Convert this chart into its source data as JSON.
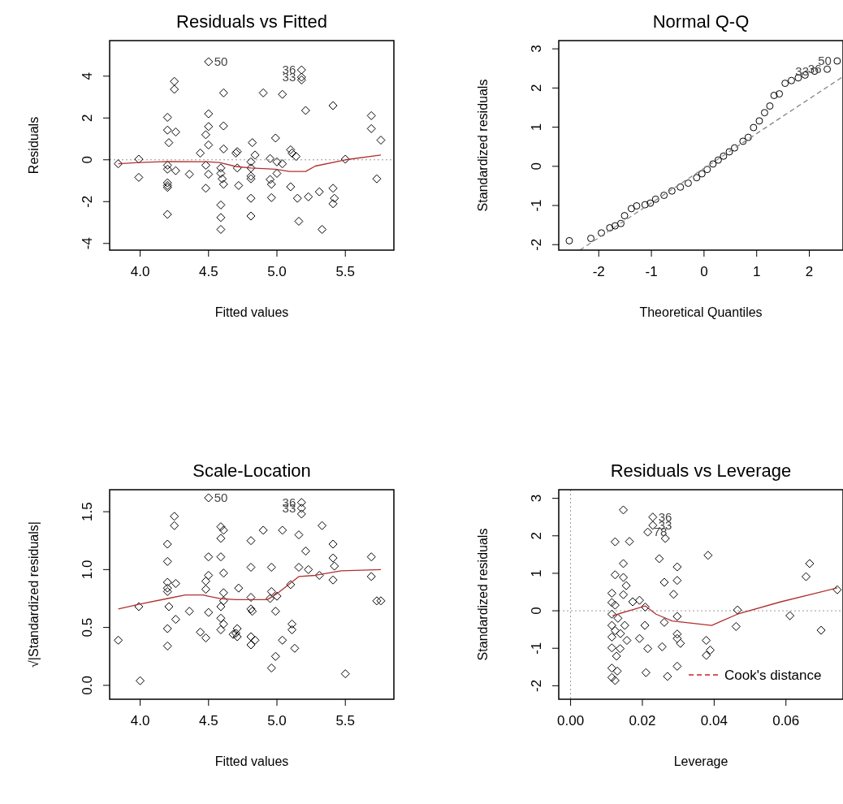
{
  "chart_data": [
    {
      "type": "scatter",
      "title": "Residuals vs Fitted",
      "xlabel": "Fitted values",
      "ylabel": "Residuals",
      "xlim": [
        3.777,
        5.855
      ],
      "ylim": [
        -4.32,
        5.7
      ],
      "xticks": [
        {
          "value": 4,
          "label": "4.0"
        },
        {
          "value": 4.5,
          "label": "4.5"
        },
        {
          "value": 5,
          "label": "5.0"
        },
        {
          "value": 5.5,
          "label": "5.5"
        }
      ],
      "yticks": [
        -4,
        -2,
        0,
        2,
        4
      ],
      "series": [
        {
          "color": "#000000",
          "marker": "diamond",
          "x": [
            3.84,
            3.99,
            3.99,
            4.2,
            4.2,
            4.21,
            4.2,
            4.2,
            4.2,
            4.2,
            4.2,
            4.2,
            4.25,
            4.25,
            4.26,
            4.26,
            4.36,
            4.44,
            4.48,
            4.48,
            4.48,
            4.5,
            4.5,
            4.5,
            4.5,
            4.5,
            4.59,
            4.59,
            4.6,
            4.61,
            4.59,
            4.59,
            4.59,
            4.61,
            4.61,
            4.61,
            4.7,
            4.71,
            4.71,
            4.72,
            4.81,
            4.81,
            4.81,
            4.81,
            4.81,
            4.81,
            4.82,
            4.84,
            4.9,
            4.95,
            4.95,
            4.96,
            4.96,
            4.99,
            5.0,
            5.0,
            5.04,
            5.04,
            5.1,
            5.11,
            5.14,
            5.1,
            5.15,
            5.16,
            5.18,
            5.18,
            5.18,
            5.21,
            5.23,
            5.31,
            5.33,
            5.41,
            5.41,
            5.42,
            5.41,
            5.5,
            5.69,
            5.69,
            5.73,
            5.76
          ],
          "values": [
            -0.19,
            0.03,
            -0.84,
            2.03,
            1.42,
            0.82,
            -0.26,
            -0.45,
            -1.1,
            -1.23,
            -1.32,
            -2.61,
            3.75,
            3.37,
            1.33,
            -0.52,
            -0.69,
            0.32,
            1.2,
            -0.26,
            -1.36,
            4.69,
            2.2,
            1.59,
            0.71,
            -0.69,
            -0.39,
            -0.65,
            -0.91,
            -1.17,
            -2.16,
            -2.76,
            -3.33,
            3.2,
            1.62,
            0.52,
            0.32,
            0.39,
            -0.39,
            -1.23,
            -0.1,
            -0.39,
            -0.78,
            -0.91,
            -1.84,
            -2.69,
            0.82,
            0.23,
            3.2,
            0.06,
            -0.94,
            -1.17,
            -1.81,
            1.04,
            -0.1,
            -0.65,
            -0.19,
            3.13,
            0.48,
            0.32,
            0.16,
            -1.29,
            -1.84,
            -2.94,
            4.3,
            3.95,
            3.82,
            2.36,
            -1.77,
            -1.53,
            -3.33,
            -1.36,
            -2.1,
            -1.84,
            2.59,
            0.03,
            2.11,
            1.49,
            -0.91,
            0.94
          ]
        },
        {
          "type": "line",
          "color": "#b03030",
          "x": [
            3.84,
            3.99,
            4.2,
            4.48,
            4.58,
            4.7,
            4.81,
            4.99,
            5.09,
            5.21,
            5.28,
            5.5,
            5.76
          ],
          "values": [
            -0.19,
            -0.13,
            -0.08,
            -0.09,
            -0.13,
            -0.32,
            -0.39,
            -0.45,
            -0.56,
            -0.56,
            -0.3,
            0.0,
            0.23
          ]
        }
      ],
      "ref_lines": [
        {
          "axis": "y",
          "value": 0,
          "color": "#999999",
          "line_style": "dotted"
        }
      ],
      "annotations": [
        {
          "text": "50",
          "x": 4.5,
          "y": 4.69
        },
        {
          "text": "36",
          "x": 5.18,
          "y": 4.3
        },
        {
          "text": "33",
          "x": 5.18,
          "y": 3.95
        }
      ]
    },
    {
      "type": "scatter",
      "title": "Normal Q-Q",
      "xlabel": "Theoretical Quantiles",
      "ylabel": "Standardized residuals",
      "xlim": [
        -2.76,
        2.64
      ],
      "ylim": [
        -2.14,
        3.21
      ],
      "xticks": [
        -2,
        -1,
        0,
        1,
        2
      ],
      "yticks": [
        -2,
        -1,
        0,
        1,
        2,
        3
      ],
      "series": [
        {
          "color": "#000000",
          "marker": "circle",
          "x": [
            -2.56,
            -2.15,
            -1.95,
            -1.79,
            -1.69,
            -1.58,
            -1.51,
            -1.38,
            -1.28,
            -1.12,
            -1.02,
            -0.92,
            -0.76,
            -0.61,
            -0.45,
            -0.3,
            -0.14,
            -0.04,
            0.06,
            0.17,
            0.27,
            0.37,
            0.48,
            0.58,
            0.74,
            0.84,
            0.94,
            1.05,
            1.15,
            1.25,
            1.33,
            1.43,
            1.54,
            1.66,
            1.79,
            1.92,
            2.1,
            2.34,
            2.53
          ],
          "values": [
            -1.9,
            -1.84,
            -1.7,
            -1.57,
            -1.52,
            -1.46,
            -1.26,
            -1.08,
            -1.01,
            -0.98,
            -0.94,
            -0.84,
            -0.74,
            -0.63,
            -0.53,
            -0.43,
            -0.29,
            -0.19,
            -0.08,
            0.06,
            0.16,
            0.26,
            0.37,
            0.47,
            0.64,
            0.74,
            0.99,
            1.16,
            1.37,
            1.54,
            1.81,
            1.85,
            2.12,
            2.19,
            2.26,
            2.33,
            2.43,
            2.48,
            2.69
          ]
        },
        {
          "type": "line",
          "color": "#888888",
          "line_style": "dashed",
          "x": [
            -2.36,
            2.64
          ],
          "values": [
            -2.14,
            2.29
          ]
        }
      ],
      "annotations": [
        {
          "text": "50",
          "x": 2.53,
          "y": 2.69
        },
        {
          "text": "36",
          "x": 2.34,
          "y": 2.48
        },
        {
          "text": "33",
          "x": 2.1,
          "y": 2.43
        }
      ]
    },
    {
      "type": "scatter",
      "title": "Scale-Location",
      "xlabel": "Fitted values",
      "ylabel": "√|Standardized residuals|",
      "xlim": [
        3.777,
        5.855
      ],
      "ylim": [
        -0.12,
        1.69
      ],
      "xticks": [
        {
          "value": 4,
          "label": "4.0"
        },
        {
          "value": 4.5,
          "label": "4.5"
        },
        {
          "value": 5,
          "label": "5.0"
        },
        {
          "value": 5.5,
          "label": "5.5"
        }
      ],
      "yticks": [
        {
          "value": 0,
          "label": "0.0"
        },
        {
          "value": 0.5,
          "label": "0.5"
        },
        {
          "value": 1,
          "label": "1.0"
        },
        {
          "value": 1.5,
          "label": "1.5"
        }
      ],
      "series": [
        {
          "color": "#000000",
          "marker": "diamond",
          "x": [
            3.84,
            3.99,
            4.2,
            4.2,
            4.2,
            4.2,
            4.2,
            4.21,
            4.2,
            4.2,
            4.25,
            4.25,
            4.26,
            4.26,
            4.36,
            4.44,
            4.48,
            4.48,
            4.48,
            4.5,
            4.5,
            4.5,
            4.5,
            4.59,
            4.59,
            4.59,
            4.61,
            4.61,
            4.61,
            4.59,
            4.59,
            4.61,
            4.59,
            4.61,
            4.7,
            4.71,
            4.71,
            4.68,
            4.72,
            4.81,
            4.81,
            4.81,
            4.81,
            4.82,
            4.81,
            4.81,
            4.84,
            4.9,
            4.96,
            4.96,
            4.95,
            5.0,
            4.99,
            5.04,
            4.99,
            5.04,
            5.11,
            5.11,
            5.13,
            5.1,
            5.16,
            5.16,
            5.18,
            5.18,
            5.18,
            5.21,
            5.23,
            5.31,
            5.33,
            5.41,
            5.41,
            5.42,
            5.41,
            5.69,
            5.69,
            5.73,
            5.76,
            4.0,
            4.96,
            5.5
          ],
          "values": [
            0.39,
            0.68,
            1.22,
            1.07,
            0.89,
            0.84,
            0.81,
            0.68,
            0.49,
            0.34,
            1.46,
            1.38,
            0.88,
            0.57,
            0.64,
            0.46,
            0.41,
            0.83,
            0.9,
            1.62,
            1.11,
            0.95,
            0.63,
            1.11,
            1.27,
            1.37,
            1.34,
            0.97,
            0.8,
            0.68,
            0.58,
            0.53,
            0.48,
            0.73,
            0.45,
            0.49,
            0.42,
            0.44,
            0.84,
            1.25,
            1.02,
            0.76,
            0.66,
            0.64,
            0.42,
            0.35,
            0.39,
            1.34,
            1.02,
            0.81,
            0.75,
            0.77,
            0.64,
            0.39,
            0.25,
            1.34,
            0.53,
            0.48,
            0.32,
            0.87,
            1.3,
            1.02,
            1.58,
            1.53,
            1.48,
            1.16,
            1.0,
            0.95,
            1.38,
            1.1,
            1.22,
            1.03,
            0.91,
            1.11,
            0.94,
            0.73,
            0.73,
            0.04,
            0.15,
            0.1
          ]
        },
        {
          "type": "line",
          "color": "#b03030",
          "x": [
            3.84,
            3.99,
            4.2,
            4.33,
            4.46,
            4.58,
            4.7,
            4.93,
            5.01,
            5.16,
            5.28,
            5.47,
            5.76
          ],
          "values": [
            0.66,
            0.7,
            0.75,
            0.78,
            0.78,
            0.75,
            0.74,
            0.74,
            0.8,
            0.94,
            0.95,
            0.99,
            1.0
          ]
        }
      ],
      "annotations": [
        {
          "text": "50",
          "x": 4.5,
          "y": 1.62
        },
        {
          "text": "36",
          "x": 5.18,
          "y": 1.58
        },
        {
          "text": "33",
          "x": 5.18,
          "y": 1.53
        }
      ]
    },
    {
      "type": "scatter",
      "title": "Residuals vs Leverage",
      "xlabel": "Leverage",
      "ylabel": "Standardized residuals",
      "legend": "bottom right",
      "xlim": [
        -0.0033,
        0.0759
      ],
      "ylim": [
        -2.36,
        3.23
      ],
      "xticks": [
        {
          "value": 0,
          "label": "0.00"
        },
        {
          "value": 0.02,
          "label": "0.02"
        },
        {
          "value": 0.04,
          "label": "0.04"
        },
        {
          "value": 0.06,
          "label": "0.06"
        }
      ],
      "yticks": [
        -2,
        -1,
        0,
        1,
        2,
        3
      ],
      "series": [
        {
          "color": "#000000",
          "marker": "diamond",
          "x": [
            0.0147,
            0.0124,
            0.0164,
            0.0147,
            0.0124,
            0.0147,
            0.0155,
            0.0147,
            0.0115,
            0.0115,
            0.0124,
            0.0115,
            0.0132,
            0.0115,
            0.0124,
            0.0139,
            0.0151,
            0.0157,
            0.0115,
            0.0115,
            0.0138,
            0.0128,
            0.0115,
            0.013,
            0.0173,
            0.0192,
            0.0208,
            0.0207,
            0.0192,
            0.0215,
            0.0229,
            0.0229,
            0.0264,
            0.0247,
            0.0261,
            0.0261,
            0.0255,
            0.0287,
            0.0297,
            0.0297,
            0.0297,
            0.0297,
            0.0297,
            0.0306,
            0.0297,
            0.0383,
            0.0378,
            0.0389,
            0.0378,
            0.0465,
            0.0461,
            0.0611,
            0.0666,
            0.0656,
            0.0698,
            0.0743,
            0.0115,
            0.0124,
            0.021,
            0.027,
            0.0215
          ],
          "values": [
            2.69,
            1.84,
            1.85,
            1.26,
            0.96,
            0.89,
            0.67,
            0.43,
            0.47,
            0.22,
            0.15,
            -0.09,
            -0.2,
            -0.39,
            -0.53,
            -0.61,
            -0.39,
            -0.79,
            -0.7,
            -0.99,
            -1.01,
            -1.21,
            -1.53,
            -1.61,
            0.24,
            0.28,
            0.1,
            -0.39,
            -0.74,
            -1.01,
            2.5,
            2.28,
            1.93,
            1.39,
            0.76,
            -0.31,
            -0.96,
            0.44,
            1.17,
            0.81,
            -0.15,
            -0.62,
            -0.74,
            -0.87,
            -1.48,
            1.48,
            -0.79,
            -1.05,
            -1.19,
            0.02,
            -0.42,
            -0.13,
            1.26,
            0.91,
            -0.52,
            0.56,
            -1.78,
            -1.86,
            -1.65,
            -1.75,
            2.1
          ]
        },
        {
          "type": "line",
          "color": "#b03030",
          "x": [
            0.0117,
            0.017,
            0.0208,
            0.0238,
            0.0283,
            0.0393,
            0.0465,
            0.0586,
            0.0743
          ],
          "values": [
            -0.13,
            0.02,
            0.13,
            -0.09,
            -0.27,
            -0.39,
            -0.09,
            0.24,
            0.61
          ]
        },
        {
          "type": "line",
          "name": "Cook's distance",
          "color": "#cc2222",
          "line_style": "dashed"
        }
      ],
      "ref_lines": [
        {
          "axis": "y",
          "value": 0,
          "color": "#999999",
          "line_style": "dotted"
        },
        {
          "axis": "x",
          "value": 0,
          "color": "#999999",
          "line_style": "dotted"
        }
      ],
      "annotations": [
        {
          "text": "36",
          "x": 0.0229,
          "y": 2.5
        },
        {
          "text": "33",
          "x": 0.0229,
          "y": 2.28
        },
        {
          "text": "78",
          "x": 0.0215,
          "y": 2.1
        }
      ]
    }
  ]
}
